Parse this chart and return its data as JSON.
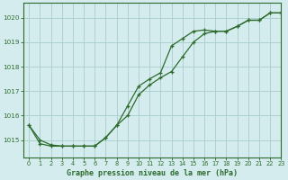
{
  "title": "Graphe pression niveau de la mer (hPa)",
  "background_color": "#d4ecee",
  "grid_color": "#aacccc",
  "line_color": "#2d6b2d",
  "xlim": [
    -0.5,
    23
  ],
  "ylim": [
    1014.3,
    1020.6
  ],
  "yticks": [
    1015,
    1016,
    1017,
    1018,
    1019,
    1020
  ],
  "xticks": [
    0,
    1,
    2,
    3,
    4,
    5,
    6,
    7,
    8,
    9,
    10,
    11,
    12,
    13,
    14,
    15,
    16,
    17,
    18,
    19,
    20,
    21,
    22,
    23
  ],
  "series1_x": [
    0,
    1,
    2,
    3,
    4,
    5,
    6,
    7,
    8,
    9,
    10,
    11,
    12,
    13,
    14,
    15,
    16,
    17,
    18,
    19,
    20,
    21,
    22,
    23
  ],
  "series1_y": [
    1015.6,
    1015.0,
    1014.8,
    1014.75,
    1014.75,
    1014.75,
    1014.75,
    1015.1,
    1015.6,
    1016.4,
    1017.2,
    1017.5,
    1017.75,
    1018.85,
    1019.15,
    1019.45,
    1019.5,
    1019.45,
    1019.45,
    1019.65,
    1019.9,
    1019.9,
    1020.2,
    1020.2
  ],
  "series2_x": [
    0,
    1,
    2,
    3,
    4,
    5,
    6,
    7,
    8,
    9,
    10,
    11,
    12,
    13,
    14,
    15,
    16,
    17,
    18,
    19,
    20,
    21,
    22,
    23
  ],
  "series2_y": [
    1015.6,
    1014.85,
    1014.75,
    1014.75,
    1014.75,
    1014.75,
    1014.75,
    1015.1,
    1015.6,
    1016.0,
    1016.85,
    1017.25,
    1017.55,
    1017.8,
    1018.4,
    1019.0,
    1019.35,
    1019.45,
    1019.45,
    1019.65,
    1019.9,
    1019.9,
    1020.2,
    1020.2
  ]
}
